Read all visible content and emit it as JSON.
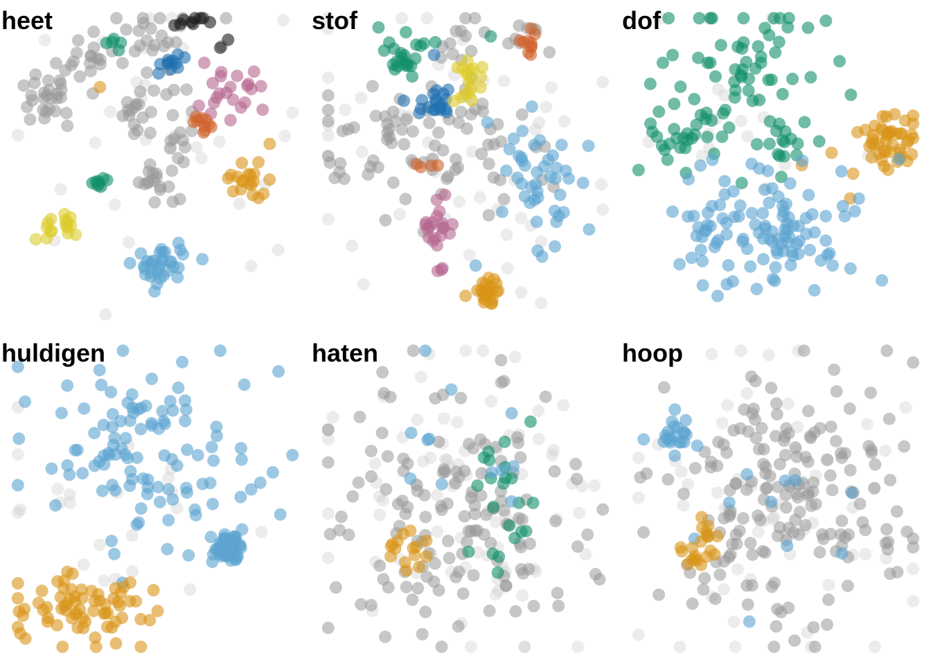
{
  "chart_data": {
    "type": "scatter",
    "layout": "2x3 facet grid",
    "axes": "none",
    "grid": false,
    "legend": "none",
    "marker": "semi-transparent circles",
    "colors": {
      "gray": "#999999",
      "light_gray": "#c8c8c8",
      "black": "#1a1a1a",
      "blue": "#1f6fb0",
      "sky_blue": "#5ba3d0",
      "green": "#11906b",
      "orange": "#d99417",
      "vermillion": "#d0632b",
      "pink": "#b6668f",
      "yellow": "#dccc2a"
    },
    "panels": [
      {
        "title": "heet",
        "clusters": [
          {
            "color": "gray",
            "center": [
              -0.78,
              0.45
            ],
            "spread": [
              0.12,
              0.09
            ],
            "n": 26
          },
          {
            "color": "gray",
            "center": [
              -0.5,
              0.72
            ],
            "spread": [
              0.1,
              0.1
            ],
            "n": 18
          },
          {
            "color": "gray",
            "center": [
              -0.08,
              0.38
            ],
            "spread": [
              0.12,
              0.1
            ],
            "n": 20
          },
          {
            "color": "gray",
            "center": [
              0.02,
              -0.13
            ],
            "spread": [
              0.08,
              0.07
            ],
            "n": 16
          },
          {
            "color": "gray",
            "center": [
              0.15,
              0.15
            ],
            "spread": [
              0.12,
              0.1
            ],
            "n": 12
          },
          {
            "color": "gray",
            "center": [
              0.1,
              0.9
            ],
            "spread": [
              0.3,
              0.12
            ],
            "n": 24
          },
          {
            "color": "light_gray",
            "center": [
              0.0,
              0.3
            ],
            "spread": [
              0.7,
              0.6
            ],
            "n": 34
          },
          {
            "color": "black",
            "center": [
              0.26,
              1.0
            ],
            "spread": [
              0.08,
              0.03
            ],
            "n": 9
          },
          {
            "color": "black",
            "center": [
              0.52,
              0.82
            ],
            "spread": [
              0.02,
              0.02
            ],
            "n": 2
          },
          {
            "color": "blue",
            "center": [
              0.1,
              0.74
            ],
            "spread": [
              0.05,
              0.06
            ],
            "n": 11
          },
          {
            "color": "pink",
            "center": [
              0.6,
              0.5
            ],
            "spread": [
              0.12,
              0.1
            ],
            "n": 22
          },
          {
            "color": "vermillion",
            "center": [
              0.37,
              0.3
            ],
            "spread": [
              0.07,
              0.04
            ],
            "n": 10
          },
          {
            "color": "orange",
            "center": [
              0.72,
              -0.1
            ],
            "spread": [
              0.07,
              0.07
            ],
            "n": 20
          },
          {
            "color": "orange",
            "center": [
              -0.4,
              0.55
            ],
            "spread": [
              0.02,
              0.02
            ],
            "n": 1
          },
          {
            "color": "green",
            "center": [
              -0.3,
              0.85
            ],
            "spread": [
              0.03,
              0.05
            ],
            "n": 5
          },
          {
            "color": "green",
            "center": [
              -0.44,
              -0.12
            ],
            "spread": [
              0.03,
              0.03
            ],
            "n": 8
          },
          {
            "color": "yellow",
            "center": [
              -0.72,
              -0.42
            ],
            "spread": [
              0.07,
              0.05
            ],
            "n": 16
          },
          {
            "color": "sky_blue",
            "center": [
              0.02,
              -0.68
            ],
            "spread": [
              0.1,
              0.08
            ],
            "n": 34
          }
        ]
      },
      {
        "title": "stof",
        "clusters": [
          {
            "color": "gray",
            "center": [
              -0.2,
              0.15
            ],
            "spread": [
              0.45,
              0.3
            ],
            "n": 85
          },
          {
            "color": "gray",
            "center": [
              -0.05,
              0.85
            ],
            "spread": [
              0.1,
              0.07
            ],
            "n": 9
          },
          {
            "color": "gray",
            "center": [
              0.5,
              0.85
            ],
            "spread": [
              0.15,
              0.08
            ],
            "n": 8
          },
          {
            "color": "light_gray",
            "center": [
              0.0,
              0.1
            ],
            "spread": [
              0.7,
              0.55
            ],
            "n": 55
          },
          {
            "color": "green",
            "center": [
              -0.45,
              0.76
            ],
            "spread": [
              0.09,
              0.07
            ],
            "n": 22
          },
          {
            "color": "green",
            "center": [
              0.18,
              0.9
            ],
            "spread": [
              0.02,
              0.02
            ],
            "n": 1
          },
          {
            "color": "vermillion",
            "center": [
              0.45,
              0.85
            ],
            "spread": [
              0.06,
              0.05
            ],
            "n": 10
          },
          {
            "color": "vermillion",
            "center": [
              -0.32,
              0.02
            ],
            "spread": [
              0.05,
              0.06
            ],
            "n": 4
          },
          {
            "color": "blue",
            "center": [
              -0.2,
              0.44
            ],
            "spread": [
              0.06,
              0.05
            ],
            "n": 18
          },
          {
            "color": "blue",
            "center": [
              -0.45,
              0.45
            ],
            "spread": [
              0.02,
              0.02
            ],
            "n": 1
          },
          {
            "color": "blue",
            "center": [
              -0.2,
              0.8
            ],
            "spread": [
              0.02,
              0.02
            ],
            "n": 1
          },
          {
            "color": "yellow",
            "center": [
              0.03,
              0.6
            ],
            "spread": [
              0.06,
              0.07
            ],
            "n": 18
          },
          {
            "color": "sky_blue",
            "center": [
              0.55,
              -0.05
            ],
            "spread": [
              0.2,
              0.25
            ],
            "n": 45
          },
          {
            "color": "pink",
            "center": [
              -0.22,
              -0.45
            ],
            "spread": [
              0.07,
              0.12
            ],
            "n": 22
          },
          {
            "color": "orange",
            "center": [
              0.18,
              -0.85
            ],
            "spread": [
              0.07,
              0.06
            ],
            "n": 24
          }
        ]
      },
      {
        "title": "dof",
        "clusters": [
          {
            "color": "green",
            "center": [
              -0.2,
              0.68
            ],
            "spread": [
              0.3,
              0.25
            ],
            "n": 55
          },
          {
            "color": "green",
            "center": [
              -0.65,
              0.25
            ],
            "spread": [
              0.15,
              0.12
            ],
            "n": 30
          },
          {
            "color": "green",
            "center": [
              0.05,
              0.2
            ],
            "spread": [
              0.08,
              0.1
            ],
            "n": 15
          },
          {
            "color": "orange",
            "center": [
              0.85,
              0.2
            ],
            "spread": [
              0.12,
              0.1
            ],
            "n": 45
          },
          {
            "color": "orange",
            "center": [
              0.45,
              0.0
            ],
            "spread": [
              0.12,
              0.15
            ],
            "n": 4
          },
          {
            "color": "sky_blue",
            "center": [
              -0.1,
              -0.45
            ],
            "spread": [
              0.35,
              0.2
            ],
            "n": 110
          },
          {
            "color": "light_gray",
            "center": [
              -0.3,
              0.3
            ],
            "spread": [
              0.4,
              0.4
            ],
            "n": 18
          }
        ]
      },
      {
        "title": "huldigen",
        "clusters": [
          {
            "color": "sky_blue",
            "center": [
              -0.1,
              0.3
            ],
            "spread": [
              0.45,
              0.35
            ],
            "n": 110
          },
          {
            "color": "sky_blue",
            "center": [
              0.55,
              -0.35
            ],
            "spread": [
              0.05,
              0.05
            ],
            "n": 40
          },
          {
            "color": "orange",
            "center": [
              -0.55,
              -0.75
            ],
            "spread": [
              0.28,
              0.12
            ],
            "n": 70
          },
          {
            "color": "light_gray",
            "center": [
              -0.2,
              -0.1
            ],
            "spread": [
              0.5,
              0.35
            ],
            "n": 22
          }
        ]
      },
      {
        "title": "haten",
        "clusters": [
          {
            "color": "gray",
            "center": [
              0.0,
              -0.1
            ],
            "spread": [
              0.45,
              0.45
            ],
            "n": 140
          },
          {
            "color": "light_gray",
            "center": [
              0.0,
              -0.05
            ],
            "spread": [
              0.55,
              0.55
            ],
            "n": 80
          },
          {
            "color": "green",
            "center": [
              0.3,
              0.05
            ],
            "spread": [
              0.12,
              0.25
            ],
            "n": 22
          },
          {
            "color": "orange",
            "center": [
              -0.45,
              -0.35
            ],
            "spread": [
              0.1,
              0.07
            ],
            "n": 15
          },
          {
            "color": "sky_blue",
            "center": [
              0.0,
              0.4
            ],
            "spread": [
              0.3,
              0.3
            ],
            "n": 12
          }
        ]
      },
      {
        "title": "hoop",
        "clusters": [
          {
            "color": "gray",
            "center": [
              0.1,
              -0.05
            ],
            "spread": [
              0.45,
              0.45
            ],
            "n": 180
          },
          {
            "color": "light_gray",
            "center": [
              0.05,
              -0.05
            ],
            "spread": [
              0.55,
              0.55
            ],
            "n": 60
          },
          {
            "color": "sky_blue",
            "center": [
              -0.75,
              0.45
            ],
            "spread": [
              0.1,
              0.07
            ],
            "n": 22
          },
          {
            "color": "sky_blue",
            "center": [
              0.0,
              0.0
            ],
            "spread": [
              0.4,
              0.4
            ],
            "n": 10
          },
          {
            "color": "orange",
            "center": [
              -0.6,
              -0.35
            ],
            "spread": [
              0.1,
              0.08
            ],
            "n": 20
          }
        ]
      }
    ]
  }
}
